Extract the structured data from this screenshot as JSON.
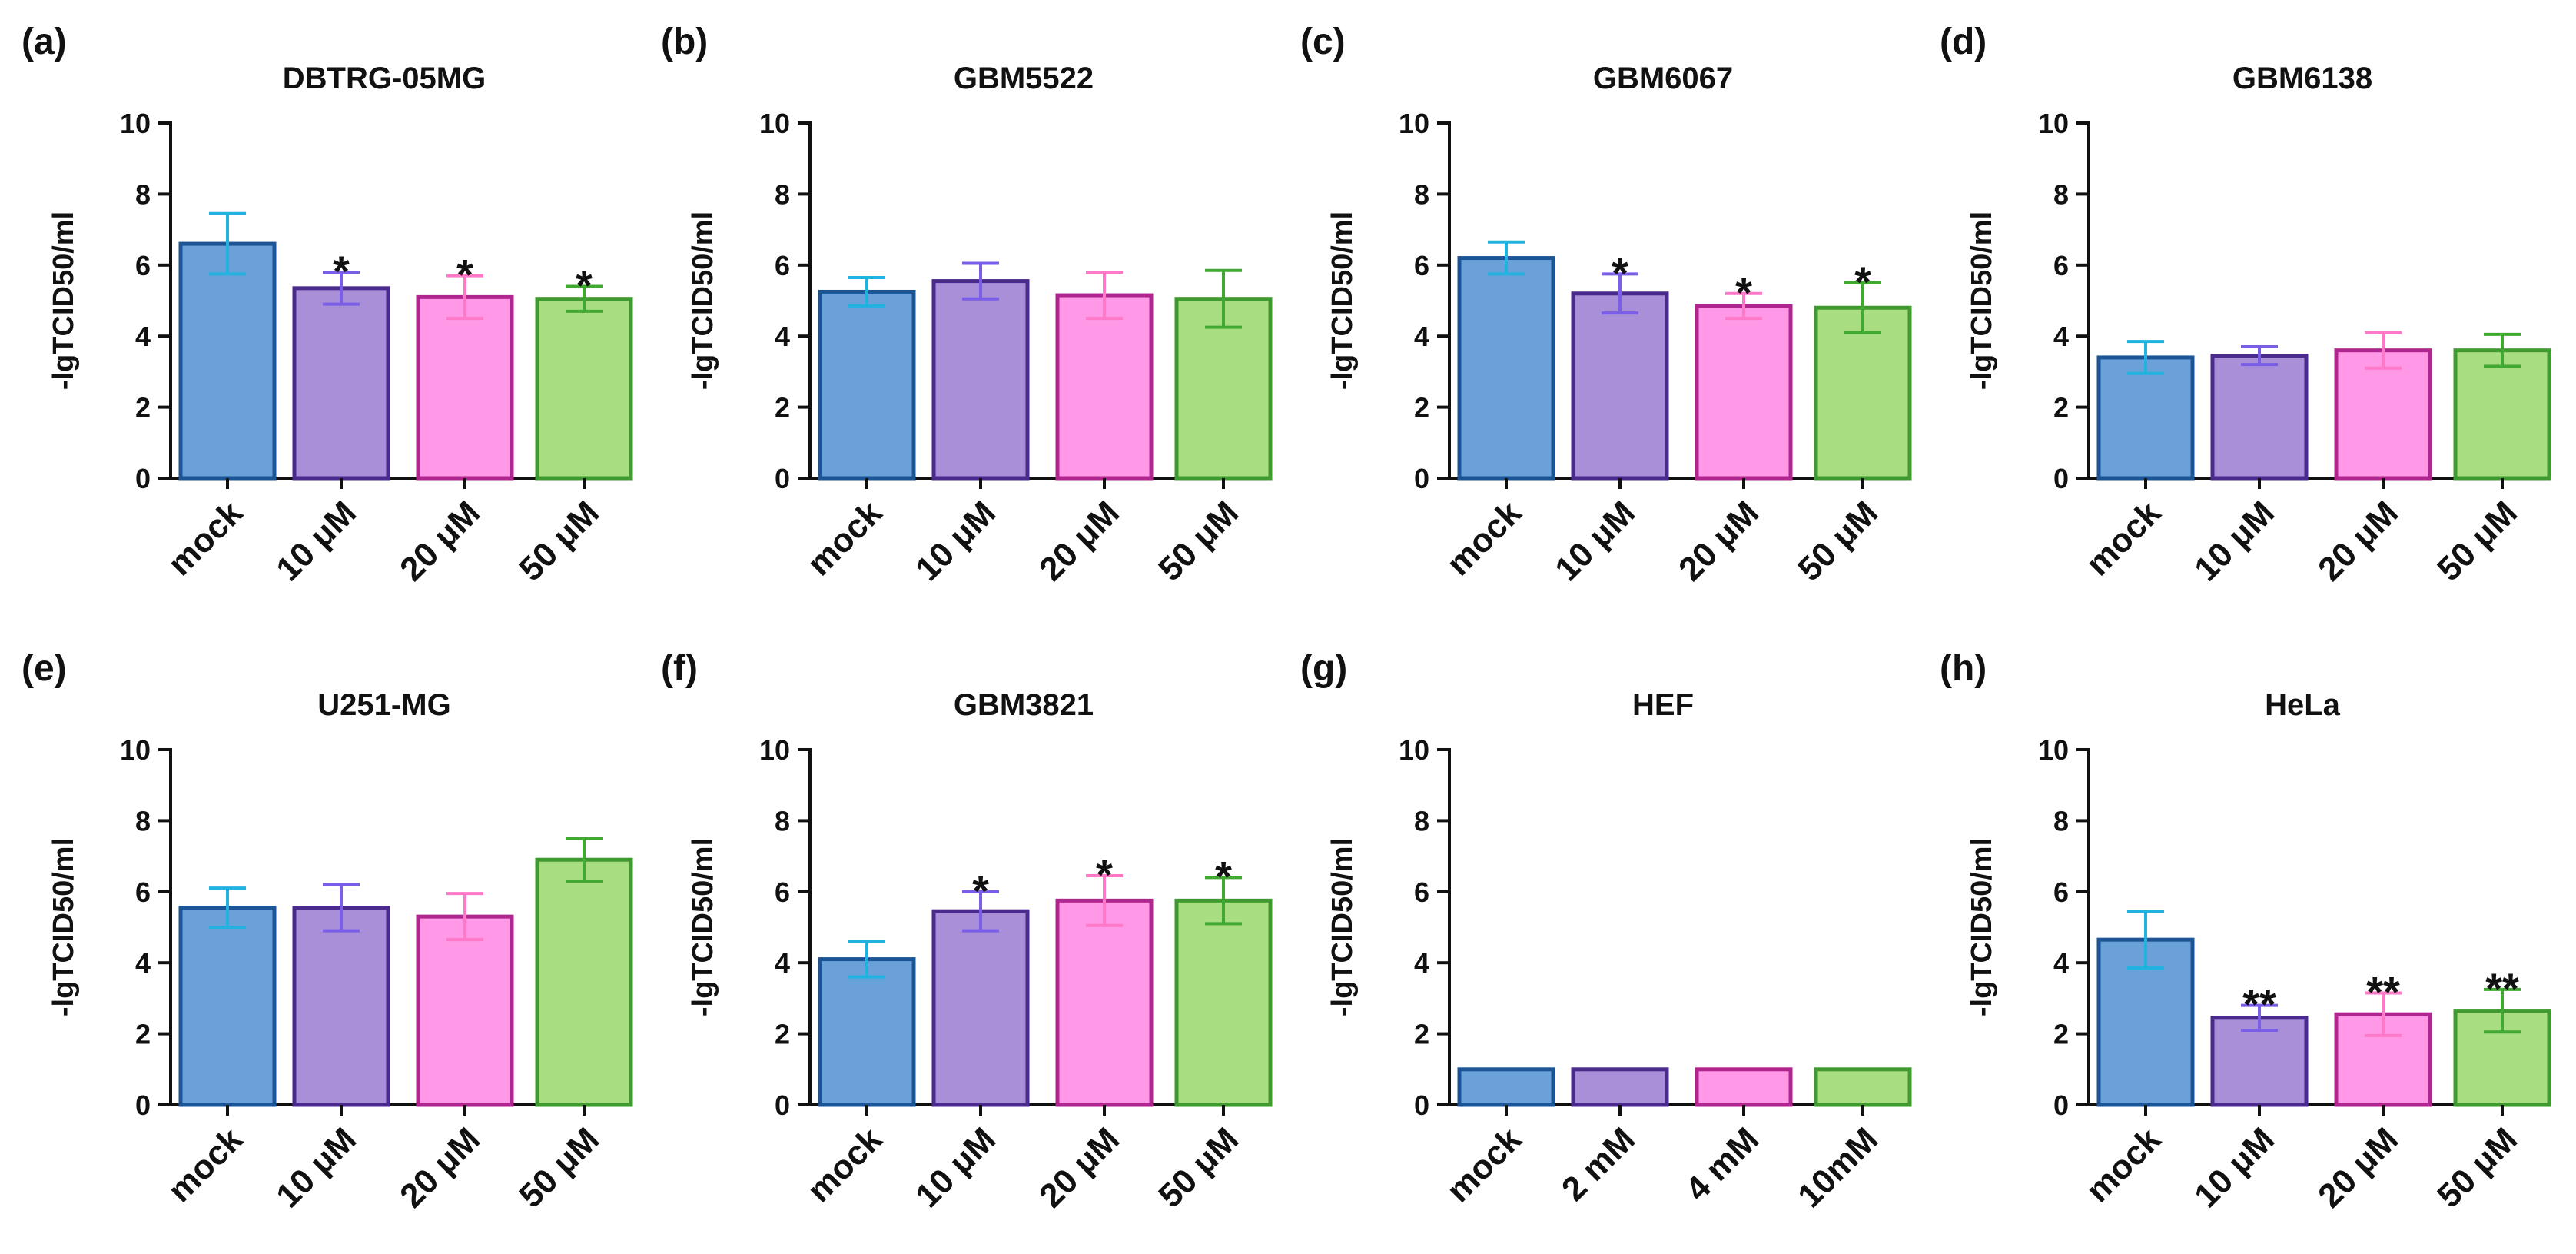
{
  "chart_data": [
    {
      "panel": "(a)",
      "title": "DBTRG-05MG",
      "type": "bar",
      "ylabel": "-lgTCID50/ml",
      "ylim": [
        0,
        10
      ],
      "yticks": [
        0,
        2,
        4,
        6,
        8,
        10
      ],
      "categories": [
        "mock",
        "10 μM",
        "20 μM",
        "50 μM"
      ],
      "values": [
        6.6,
        5.35,
        5.1,
        5.05
      ],
      "errors": [
        0.85,
        0.45,
        0.6,
        0.35
      ],
      "significance": [
        "",
        "*",
        "*",
        "*"
      ]
    },
    {
      "panel": "(b)",
      "title": "GBM5522",
      "type": "bar",
      "ylabel": "-lgTCID50/ml",
      "ylim": [
        0,
        10
      ],
      "yticks": [
        0,
        2,
        4,
        6,
        8,
        10
      ],
      "categories": [
        "mock",
        "10 μM",
        "20 μM",
        "50 μM"
      ],
      "values": [
        5.25,
        5.55,
        5.15,
        5.05
      ],
      "errors": [
        0.4,
        0.5,
        0.65,
        0.8
      ],
      "significance": [
        "",
        "",
        "",
        ""
      ]
    },
    {
      "panel": "(c)",
      "title": "GBM6067",
      "type": "bar",
      "ylabel": "-lgTCID50/ml",
      "ylim": [
        0,
        10
      ],
      "yticks": [
        0,
        2,
        4,
        6,
        8,
        10
      ],
      "categories": [
        "mock",
        "10 μM",
        "20 μM",
        "50 μM"
      ],
      "values": [
        6.2,
        5.2,
        4.85,
        4.8
      ],
      "errors": [
        0.45,
        0.55,
        0.35,
        0.7
      ],
      "significance": [
        "",
        "*",
        "*",
        "*"
      ]
    },
    {
      "panel": "(d)",
      "title": "GBM6138",
      "type": "bar",
      "ylabel": "-lgTCID50/ml",
      "ylim": [
        0,
        10
      ],
      "yticks": [
        0,
        2,
        4,
        6,
        8,
        10
      ],
      "categories": [
        "mock",
        "10 μM",
        "20 μM",
        "50 μM"
      ],
      "values": [
        3.4,
        3.45,
        3.6,
        3.6
      ],
      "errors": [
        0.45,
        0.25,
        0.5,
        0.45
      ],
      "significance": [
        "",
        "",
        "",
        ""
      ]
    },
    {
      "panel": "(e)",
      "title": "U251-MG",
      "type": "bar",
      "ylabel": "-lgTCID50/ml",
      "ylim": [
        0,
        10
      ],
      "yticks": [
        0,
        2,
        4,
        6,
        8,
        10
      ],
      "categories": [
        "mock",
        "10 μM",
        "20 μM",
        "50 μM"
      ],
      "values": [
        5.55,
        5.55,
        5.3,
        6.9
      ],
      "errors": [
        0.55,
        0.65,
        0.65,
        0.6
      ],
      "significance": [
        "",
        "",
        "",
        ""
      ]
    },
    {
      "panel": "(f)",
      "title": "GBM3821",
      "type": "bar",
      "ylabel": "-lgTCID50/ml",
      "ylim": [
        0,
        10
      ],
      "yticks": [
        0,
        2,
        4,
        6,
        8,
        10
      ],
      "categories": [
        "mock",
        "10 μM",
        "20 μM",
        "50 μM"
      ],
      "values": [
        4.1,
        5.45,
        5.75,
        5.75
      ],
      "errors": [
        0.5,
        0.55,
        0.7,
        0.65
      ],
      "significance": [
        "",
        "*",
        "*",
        "*"
      ]
    },
    {
      "panel": "(g)",
      "title": "HEF",
      "type": "bar",
      "ylabel": "-lgTCID50/ml",
      "ylim": [
        0,
        10
      ],
      "yticks": [
        0,
        2,
        4,
        6,
        8,
        10
      ],
      "categories": [
        "mock",
        "2 mM",
        "4 mM",
        "10mM"
      ],
      "values": [
        1.0,
        1.0,
        1.0,
        1.0
      ],
      "errors": [
        0,
        0,
        0,
        0
      ],
      "significance": [
        "",
        "",
        "",
        ""
      ]
    },
    {
      "panel": "(h)",
      "title": "HeLa",
      "type": "bar",
      "ylabel": "-lgTCID50/ml",
      "ylim": [
        0,
        10
      ],
      "yticks": [
        0,
        2,
        4,
        6,
        8,
        10
      ],
      "categories": [
        "mock",
        "10 μM",
        "20 μM",
        "50 μM"
      ],
      "values": [
        4.65,
        2.45,
        2.55,
        2.65
      ],
      "errors": [
        0.8,
        0.35,
        0.6,
        0.6
      ],
      "significance": [
        "",
        "**",
        "**",
        "**"
      ]
    }
  ],
  "colors": {
    "fills": [
      "#6aa1d9",
      "#a98ed8",
      "#ff98e6",
      "#a9dd82"
    ],
    "borders": [
      "#1b5596",
      "#4b2a8e",
      "#b0268f",
      "#3f9a2f"
    ],
    "errors": [
      "#21b2e0",
      "#7a5ee8",
      "#ff79c8",
      "#41a832"
    ],
    "axis": "#111111"
  }
}
